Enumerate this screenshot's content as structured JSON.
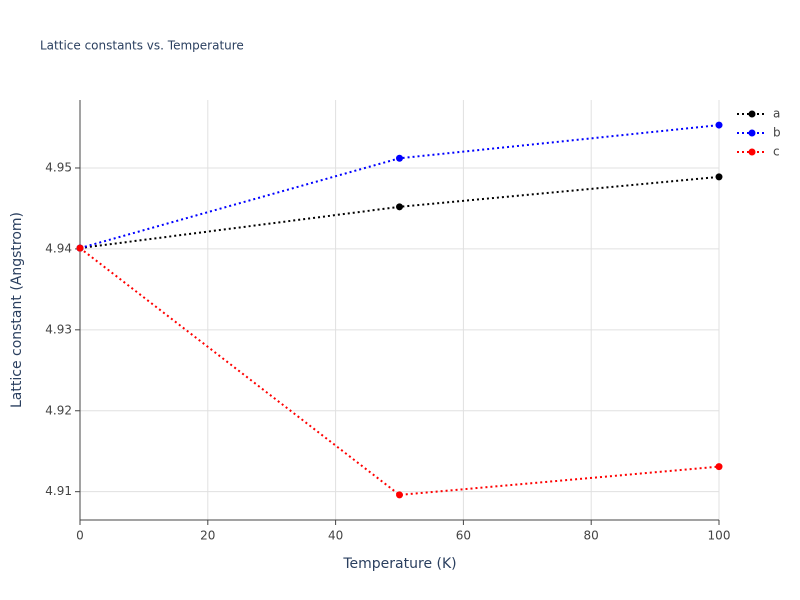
{
  "chart_data": {
    "type": "line",
    "title": "Lattice constants vs. Temperature",
    "x_label": "Temperature (K)",
    "y_label": "Lattice constant (Angstrom)",
    "x": [
      0,
      50,
      100
    ],
    "series": [
      {
        "name": "a",
        "color": "#000000",
        "values": [
          4.9401,
          4.9452,
          4.9489
        ]
      },
      {
        "name": "b",
        "color": "#0000ff",
        "values": [
          4.9401,
          4.9512,
          4.9553
        ]
      },
      {
        "name": "c",
        "color": "#ff0000",
        "values": [
          4.9401,
          4.9096,
          4.9131
        ]
      }
    ],
    "xlim": [
      0,
      100
    ],
    "xticks": [
      0,
      20,
      40,
      60,
      80,
      100
    ],
    "ylim": [
      4.9065,
      4.9584
    ],
    "yticks": [
      4.91,
      4.92,
      4.93,
      4.94,
      4.95
    ],
    "grid": true,
    "line_style": "dot",
    "legend": "right"
  }
}
